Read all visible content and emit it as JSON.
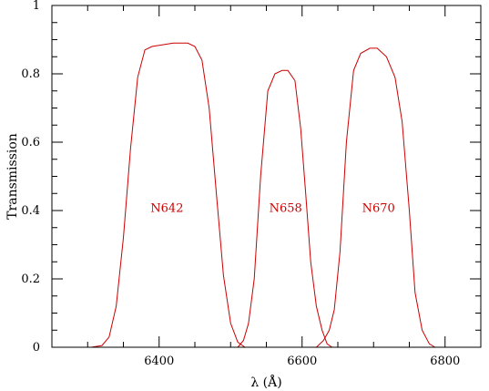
{
  "chart_data": {
    "type": "line",
    "title": "",
    "xlabel": "λ (Å)",
    "ylabel": "Transmission",
    "xlim": [
      6250,
      6850
    ],
    "ylim": [
      0,
      1
    ],
    "grid": false,
    "line_color": "#cc0000",
    "x_ticks": [
      {
        "value": 6400,
        "label": "6400"
      },
      {
        "value": 6600,
        "label": "6600"
      },
      {
        "value": 6800,
        "label": "6800"
      }
    ],
    "y_ticks": [
      {
        "value": 0,
        "label": "0"
      },
      {
        "value": 0.2,
        "label": "0.2"
      },
      {
        "value": 0.4,
        "label": "0.4"
      },
      {
        "value": 0.6,
        "label": "0.6"
      },
      {
        "value": 0.8,
        "label": "0.8"
      },
      {
        "value": 1,
        "label": "1"
      }
    ],
    "series": [
      {
        "name": "N642",
        "label_pos": [
          6411,
          0.41
        ],
        "points": [
          [
            6305,
            0
          ],
          [
            6320,
            0.005
          ],
          [
            6330,
            0.03
          ],
          [
            6340,
            0.12
          ],
          [
            6350,
            0.32
          ],
          [
            6360,
            0.58
          ],
          [
            6370,
            0.79
          ],
          [
            6380,
            0.87
          ],
          [
            6390,
            0.88
          ],
          [
            6405,
            0.885
          ],
          [
            6420,
            0.89
          ],
          [
            6440,
            0.89
          ],
          [
            6450,
            0.88
          ],
          [
            6460,
            0.84
          ],
          [
            6470,
            0.7
          ],
          [
            6480,
            0.45
          ],
          [
            6490,
            0.21
          ],
          [
            6500,
            0.07
          ],
          [
            6510,
            0.015
          ],
          [
            6520,
            0
          ]
        ]
      },
      {
        "name": "N658",
        "label_pos": [
          6577,
          0.41
        ],
        "points": [
          [
            6510,
            0
          ],
          [
            6518,
            0.02
          ],
          [
            6525,
            0.07
          ],
          [
            6533,
            0.2
          ],
          [
            6542,
            0.5
          ],
          [
            6552,
            0.75
          ],
          [
            6562,
            0.8
          ],
          [
            6572,
            0.81
          ],
          [
            6580,
            0.81
          ],
          [
            6590,
            0.78
          ],
          [
            6598,
            0.64
          ],
          [
            6605,
            0.45
          ],
          [
            6612,
            0.25
          ],
          [
            6620,
            0.12
          ],
          [
            6628,
            0.05
          ],
          [
            6635,
            0.01
          ],
          [
            6642,
            0
          ]
        ]
      },
      {
        "name": "N670",
        "label_pos": [
          6707,
          0.41
        ],
        "points": [
          [
            6620,
            0
          ],
          [
            6630,
            0.02
          ],
          [
            6638,
            0.05
          ],
          [
            6645,
            0.11
          ],
          [
            6653,
            0.28
          ],
          [
            6662,
            0.6
          ],
          [
            6672,
            0.81
          ],
          [
            6682,
            0.86
          ],
          [
            6695,
            0.875
          ],
          [
            6705,
            0.875
          ],
          [
            6718,
            0.85
          ],
          [
            6730,
            0.79
          ],
          [
            6740,
            0.66
          ],
          [
            6750,
            0.4
          ],
          [
            6758,
            0.16
          ],
          [
            6768,
            0.05
          ],
          [
            6778,
            0.01
          ],
          [
            6786,
            0
          ]
        ]
      }
    ]
  }
}
